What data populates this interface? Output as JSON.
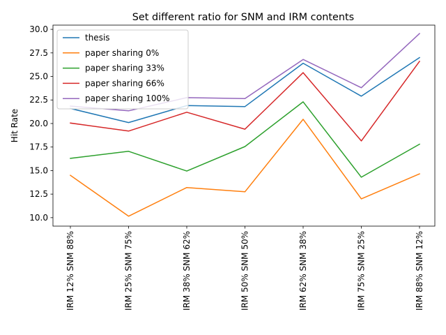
{
  "chart_data": {
    "type": "line",
    "title": "Set different ratio for SNM and IRM contents",
    "xlabel": "",
    "ylabel": "Hit Rate",
    "categories": [
      "IRM 12% SNM 88%",
      "IRM 25% SNM 75%",
      "IRM 38% SNM 62%",
      "IRM 50% SNM 50%",
      "IRM 62% SNM 38%",
      "IRM 75% SNM 25%",
      "IRM 88% SNM 12%"
    ],
    "ylim": [
      9.1,
      30.45
    ],
    "yticks": [
      "10.0",
      "12.5",
      "15.0",
      "17.5",
      "20.0",
      "22.5",
      "25.0",
      "27.5",
      "30.0"
    ],
    "grid": false,
    "legend_position": "upper-left",
    "series": [
      {
        "name": "thesis",
        "color": "#1f77b4",
        "values": [
          21.6,
          20.1,
          21.9,
          21.8,
          26.4,
          22.9,
          27.0
        ]
      },
      {
        "name": "paper sharing 0%",
        "color": "#ff7f0e",
        "values": [
          14.5,
          10.15,
          13.2,
          12.75,
          20.45,
          12.0,
          14.65
        ]
      },
      {
        "name": "paper sharing 33%",
        "color": "#2ca02c",
        "values": [
          16.3,
          17.05,
          14.95,
          17.55,
          22.3,
          14.3,
          17.8
        ]
      },
      {
        "name": "paper sharing 66%",
        "color": "#d62728",
        "values": [
          20.05,
          19.2,
          21.2,
          19.4,
          25.4,
          18.15,
          26.6
        ]
      },
      {
        "name": "paper sharing 100%",
        "color": "#9467bd",
        "values": [
          21.85,
          21.35,
          22.75,
          22.65,
          26.8,
          23.8,
          29.55
        ]
      }
    ]
  }
}
